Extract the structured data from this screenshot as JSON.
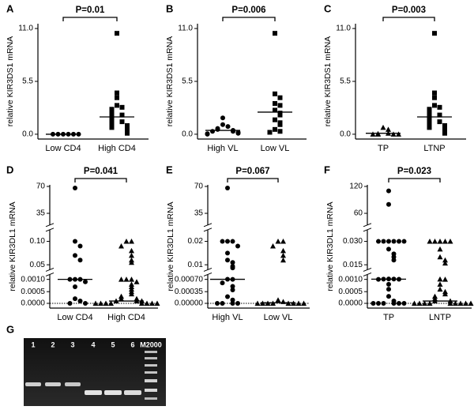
{
  "chart_data": [
    {
      "type": "dotplot",
      "panel_label": "A",
      "ylabel": "relative KIR3DS1 mRNA",
      "annotation": "P=0.01",
      "categories": [
        "Low CD4",
        "High CD4"
      ],
      "markers": [
        "circle",
        "square"
      ],
      "color": "#000000",
      "values": [
        [
          0,
          0,
          0,
          0,
          0,
          0
        ],
        [
          10.5,
          4.3,
          3.8,
          3.0,
          2.8,
          2.6,
          2.5,
          2.3,
          2.0,
          1.9,
          1.8,
          1.5,
          1.3,
          1.2,
          1.0,
          0.9,
          0.7,
          0.6,
          0.5,
          0.3,
          0.2,
          0.1
        ]
      ],
      "medians": [
        0,
        1.8
      ],
      "ylim": [
        -0.5,
        11.5
      ],
      "yticks": [
        {
          "value": 0,
          "label": "0.0"
        },
        5.5,
        {
          "value": 11,
          "label": "11.0"
        }
      ]
    },
    {
      "type": "dotplot",
      "panel_label": "B",
      "ylabel": "relative KIR3DS1 mRNA",
      "annotation": "P=0.006",
      "categories": [
        "High VL",
        "Low VL"
      ],
      "markers": [
        "circle",
        "square"
      ],
      "color": "#000000",
      "values": [
        [
          1.7,
          1.0,
          0.8,
          0.6,
          0.5,
          0.4,
          0.3,
          0.3,
          0.2,
          0.1,
          0.05,
          0
        ],
        [
          10.5,
          4.2,
          3.8,
          3.2,
          3.0,
          2.5,
          2.2,
          2.0,
          1.5,
          1.2,
          1.0,
          0.5,
          0.3,
          0.2
        ]
      ],
      "medians": [
        0.4,
        2.3
      ],
      "ylim": [
        -0.5,
        11.5
      ],
      "yticks": [
        {
          "value": 0,
          "label": "0.0"
        },
        5.5,
        {
          "value": 11,
          "label": "11.0"
        }
      ]
    },
    {
      "type": "dotplot",
      "panel_label": "C",
      "ylabel": "relative KIR3DS1 mRNA",
      "annotation": "P=0.003",
      "categories": [
        "TP",
        "LTNP"
      ],
      "markers": [
        "triangle",
        "square"
      ],
      "color": "#000000",
      "values": [
        [
          0.7,
          0.5,
          0.1,
          0.05,
          0,
          0,
          0,
          0
        ],
        [
          10.5,
          4.3,
          3.8,
          3.0,
          2.8,
          2.6,
          2.5,
          2.3,
          2.0,
          1.9,
          1.8,
          1.5,
          1.3,
          1.2,
          1.0,
          0.9,
          0.7,
          0.6,
          0.5,
          0.3,
          0.2,
          0.1
        ]
      ],
      "medians": [
        0.1,
        1.8
      ],
      "ylim": [
        -0.5,
        11.5
      ],
      "yticks": [
        {
          "value": 0,
          "label": "0.0"
        },
        5.5,
        {
          "value": 11,
          "label": "11.0"
        }
      ]
    },
    {
      "type": "dotplot",
      "panel_label": "D",
      "ylabel": "relative KIR3DL1 mRNA",
      "annotation": "P=0.041",
      "categories": [
        "Low CD4",
        "High CD4"
      ],
      "markers": [
        "circle",
        "triangle"
      ],
      "color": "#000000",
      "broken_axis": true,
      "zero_line": true,
      "values": [
        [
          68,
          0.12,
          0.09,
          0.07,
          0.06,
          0.0012,
          0.0011,
          0.001,
          0.0009,
          0.0007,
          0.0002,
          0.0001,
          0,
          0
        ],
        [
          0.11,
          0.1,
          0.09,
          0.08,
          0.07,
          0.06,
          0.055,
          0.0012,
          0.0011,
          0.001,
          0.0009,
          0.0008,
          0.0007,
          0.0006,
          0.0005,
          0.0004,
          0.0003,
          0.0002,
          0.0002,
          0.0001,
          0.0001,
          0.0001,
          0,
          0,
          0,
          0,
          0,
          0,
          0,
          0
        ]
      ],
      "medians": [
        0.001,
        0.0001
      ],
      "ylim": [
        0,
        70
      ],
      "yticks": [
        {
          "value": 0,
          "label": "0.0000"
        },
        0.0005,
        {
          "value": 0.001,
          "label": "0.0010"
        },
        0.05,
        {
          "value": 0.1,
          "label": "0.10"
        },
        35,
        70
      ]
    },
    {
      "type": "dotplot",
      "panel_label": "E",
      "ylabel": "relative KIR3DL1 mRNA",
      "annotation": "P=0.067",
      "categories": [
        "High VL",
        "Low VL"
      ],
      "markers": [
        "circle",
        "triangle"
      ],
      "color": "#000000",
      "broken_axis": true,
      "zero_line": true,
      "values": [
        [
          68,
          0.022,
          0.021,
          0.02,
          0.018,
          0.015,
          0.012,
          0.011,
          0.009,
          0.008,
          0.0008,
          0.0007,
          0.0006,
          0.0005,
          0.0004,
          0.0002,
          0.0001,
          0,
          0,
          0,
          0
        ],
        [
          0.021,
          0.02,
          0.018,
          0.016,
          0.014,
          0.012,
          0.0001,
          5e-05,
          0,
          0,
          0,
          0,
          0,
          0,
          0,
          0
        ]
      ],
      "medians": [
        0.00075,
        2e-05
      ],
      "ylim": [
        0,
        70
      ],
      "yticks": [
        {
          "value": 0,
          "label": "0.00000"
        },
        0.00035,
        {
          "value": 0.0007,
          "label": "0.00070"
        },
        0.01,
        0.02,
        35,
        70
      ]
    },
    {
      "type": "dotplot",
      "panel_label": "F",
      "ylabel": "relative KIR3DL1 mRNA",
      "annotation": "P=0.023",
      "categories": [
        "TP",
        "LNTP"
      ],
      "markers": [
        "circle",
        "triangle"
      ],
      "color": "#000000",
      "broken_axis": true,
      "zero_line": true,
      "values": [
        [
          110,
          80,
          0.035,
          0.034,
          0.033,
          0.032,
          0.031,
          0.03,
          0.025,
          0.022,
          0.02,
          0.018,
          0.0014,
          0.0013,
          0.0012,
          0.0011,
          0.001,
          0.0008,
          0.0006,
          0.0003,
          0.0001,
          0,
          0,
          0,
          0,
          0,
          0
        ],
        [
          0.033,
          0.033,
          0.033,
          0.033,
          0.033,
          0.025,
          0.02,
          0.018,
          0.016,
          0.0012,
          0.001,
          0.0008,
          0.0006,
          0.0005,
          0.0004,
          0.0003,
          0.0002,
          0.0001,
          0.0001,
          0,
          0,
          0,
          0,
          0,
          0,
          0,
          0,
          0
        ]
      ],
      "medians": [
        0.0012,
        0.0001
      ],
      "ylim": [
        0,
        120
      ],
      "yticks": [
        {
          "value": 0,
          "label": "0.0000"
        },
        0.0005,
        {
          "value": 0.001,
          "label": "0.0010"
        },
        0.015,
        {
          "value": 0.03,
          "label": "0.030"
        },
        60,
        120
      ]
    }
  ],
  "gel": {
    "panel_label": "G",
    "lanes": [
      "1",
      "2",
      "3",
      "4",
      "5",
      "6",
      "M2000"
    ]
  }
}
